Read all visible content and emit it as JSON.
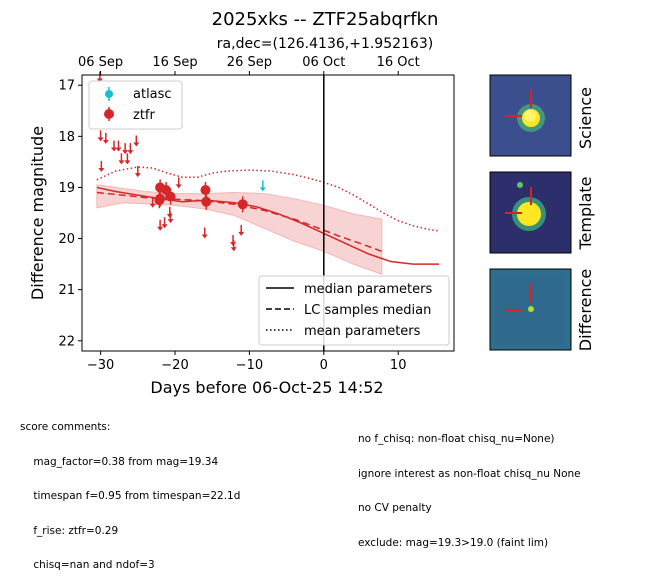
{
  "title": "2025xks -- ZTF25abqrfkn",
  "subtitle": "ra,dec=(126.4136,+1.952163)",
  "chart_data": {
    "type": "scatter",
    "xlabel": "Days before 06-Oct-25 14:52",
    "ylabel": "Difference magnitude",
    "xlim": [
      -32.5,
      17.5
    ],
    "ylim": [
      22.2,
      16.8
    ],
    "y_inverted": true,
    "xticks": [
      -30,
      -20,
      -10,
      0,
      10
    ],
    "xtick_labels": [
      "−30",
      "−20",
      "−10",
      "0",
      "10"
    ],
    "yticks": [
      17,
      18,
      19,
      20,
      21,
      22
    ],
    "top_axis_ticks": [
      {
        "x": -30,
        "label": "06 Sep"
      },
      {
        "x": -20,
        "label": "16 Sep"
      },
      {
        "x": -10,
        "label": "26 Sep"
      },
      {
        "x": 0,
        "label": "06 Oct"
      },
      {
        "x": 10,
        "label": "16 Oct"
      }
    ],
    "reference_line_x": 0,
    "grid": false,
    "legend_top": {
      "placement": "upper-left",
      "entries": [
        {
          "label": "atlasc",
          "color": "#17becf"
        },
        {
          "label": "ztfr",
          "color": "#d62728"
        }
      ]
    },
    "legend_bottom": {
      "placement": "lower-right",
      "entries": [
        {
          "label": "median parameters",
          "dash": "solid"
        },
        {
          "label": "LC samples median",
          "dash": "dashed"
        },
        {
          "label": "mean parameters",
          "dash": "dotted"
        }
      ]
    },
    "series": [
      {
        "name": "ztfr",
        "kind": "detections",
        "color": "#d62728",
        "points": [
          [
            -22.1,
            19.25
          ],
          [
            -22.0,
            19.22
          ],
          [
            -22.0,
            19.0
          ],
          [
            -21.2,
            19.05
          ],
          [
            -20.6,
            19.18
          ],
          [
            -15.9,
            19.05
          ],
          [
            -15.8,
            19.28
          ],
          [
            -10.9,
            19.33
          ]
        ]
      },
      {
        "name": "ztfr",
        "kind": "upper_limits",
        "color": "#d62728",
        "points": [
          [
            -30.1,
            16.85
          ],
          [
            -30.0,
            18.0
          ],
          [
            -29.9,
            18.6
          ],
          [
            -29.3,
            18.05
          ],
          [
            -28.2,
            18.2
          ],
          [
            -27.6,
            18.2
          ],
          [
            -27.2,
            18.45
          ],
          [
            -26.7,
            18.25
          ],
          [
            -26.4,
            18.45
          ],
          [
            -26.0,
            18.25
          ],
          [
            -25.2,
            18.1
          ],
          [
            -25.0,
            18.7
          ],
          [
            -23.0,
            19.3
          ],
          [
            -22.0,
            19.75
          ],
          [
            -21.4,
            19.7
          ],
          [
            -20.7,
            19.5
          ],
          [
            -20.6,
            19.6
          ],
          [
            -19.5,
            18.92
          ],
          [
            -16.0,
            19.9
          ],
          [
            -12.2,
            20.05
          ],
          [
            -12.1,
            20.15
          ],
          [
            -11.1,
            19.85
          ]
        ]
      },
      {
        "name": "atlasc",
        "kind": "upper_limits",
        "color": "#17becf",
        "points": [
          [
            -8.2,
            18.98
          ]
        ]
      },
      {
        "name": "median parameters",
        "kind": "line",
        "dash": "solid",
        "color": "#d62728",
        "points": [
          [
            -30.5,
            19.0
          ],
          [
            -28,
            19.08
          ],
          [
            -25,
            19.15
          ],
          [
            -22,
            19.22
          ],
          [
            -19,
            19.28
          ],
          [
            -17,
            19.26
          ],
          [
            -15,
            19.26
          ],
          [
            -12,
            19.3
          ],
          [
            -9,
            19.38
          ],
          [
            -6,
            19.52
          ],
          [
            -3,
            19.7
          ],
          [
            0,
            19.9
          ],
          [
            3,
            20.1
          ],
          [
            6,
            20.3
          ],
          [
            9,
            20.45
          ],
          [
            12,
            20.5
          ],
          [
            15.5,
            20.5
          ]
        ]
      },
      {
        "name": "LC samples median",
        "kind": "line",
        "dash": "dashed",
        "color": "#d62728",
        "points": [
          [
            -30.5,
            19.1
          ],
          [
            -27,
            19.15
          ],
          [
            -24,
            19.2
          ],
          [
            -20,
            19.23
          ],
          [
            -16,
            19.26
          ],
          [
            -12,
            19.33
          ],
          [
            -8,
            19.45
          ],
          [
            -4,
            19.62
          ],
          [
            -1,
            19.78
          ],
          [
            2,
            19.95
          ],
          [
            5,
            20.1
          ],
          [
            7.8,
            20.25
          ]
        ]
      },
      {
        "name": "mean parameters",
        "kind": "line",
        "dash": "dotted",
        "color": "#d62728",
        "points": [
          [
            -30.5,
            18.85
          ],
          [
            -28,
            18.68
          ],
          [
            -25,
            18.6
          ],
          [
            -23,
            18.62
          ],
          [
            -21,
            18.72
          ],
          [
            -19,
            18.8
          ],
          [
            -17,
            18.8
          ],
          [
            -15,
            18.72
          ],
          [
            -13,
            18.68
          ],
          [
            -10,
            18.66
          ],
          [
            -7,
            18.68
          ],
          [
            -4,
            18.75
          ],
          [
            -2,
            18.82
          ],
          [
            0,
            18.9
          ],
          [
            2,
            19.0
          ],
          [
            4,
            19.15
          ],
          [
            6,
            19.32
          ],
          [
            8,
            19.5
          ],
          [
            10,
            19.65
          ],
          [
            12,
            19.75
          ],
          [
            14,
            19.82
          ],
          [
            15.5,
            19.85
          ]
        ]
      },
      {
        "name": "LC samples band",
        "kind": "band",
        "color": "#f4b6b6",
        "upper": [
          [
            -30.5,
            18.95
          ],
          [
            -27,
            19.02
          ],
          [
            -24,
            19.08
          ],
          [
            -20,
            19.12
          ],
          [
            -16,
            19.12
          ],
          [
            -12,
            19.1
          ],
          [
            -8,
            19.12
          ],
          [
            -4,
            19.22
          ],
          [
            0,
            19.35
          ],
          [
            4,
            19.52
          ],
          [
            7.8,
            19.62
          ]
        ],
        "lower": [
          [
            -30.5,
            19.4
          ],
          [
            -27,
            19.3
          ],
          [
            -24,
            19.32
          ],
          [
            -20,
            19.35
          ],
          [
            -16,
            19.42
          ],
          [
            -12,
            19.55
          ],
          [
            -8,
            19.8
          ],
          [
            -4,
            20.05
          ],
          [
            0,
            20.25
          ],
          [
            4,
            20.5
          ],
          [
            7.8,
            20.7
          ]
        ]
      }
    ]
  },
  "cutouts": [
    {
      "label": "Science"
    },
    {
      "label": "Template"
    },
    {
      "label": "Difference"
    }
  ],
  "score_comments_left": [
    "score comments:",
    "    mag_factor=0.38 from mag=19.34",
    "    timespan f=0.95 from timespan=22.1d",
    "    f_rise: ztfr=0.29",
    "    chisq=nan and ndof=3"
  ],
  "score_comments_right": [
    "no f_chisq: non-float chisq_nu=None)",
    "ignore interest as non-float chisq_nu None",
    "no CV penalty",
    "exclude: mag=19.3>19.0 (faint lim)"
  ]
}
